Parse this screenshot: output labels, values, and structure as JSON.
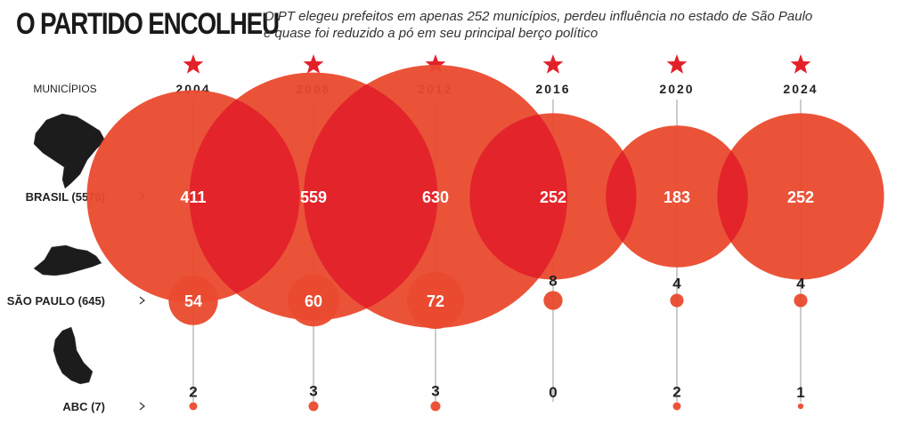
{
  "header": {
    "title": "O PARTIDO ENCOLHEU",
    "subtitle_line1": "O PT elegeu prefeitos em apenas 252 municípios, perdeu influência no estado de São Paulo",
    "subtitle_line2": "e quase foi reduzido a pó em seu principal berço político"
  },
  "chart_data": {
    "type": "bubble",
    "row_header": "MUNICÍPIOS",
    "years": [
      "2004",
      "2008",
      "2012",
      "2016",
      "2020",
      "2024"
    ],
    "series": [
      {
        "name": "BRASIL (5570)",
        "values": [
          411,
          559,
          630,
          252,
          183,
          252
        ],
        "labels_inside": true
      },
      {
        "name": "SÃO PAULO (645)",
        "values": [
          54,
          60,
          72,
          8,
          4,
          4
        ],
        "labels_inside_min": 50
      },
      {
        "name": "ABC (7)",
        "values": [
          2,
          3,
          3,
          0,
          2,
          1
        ],
        "labels_inside_min": 1000
      }
    ],
    "colors": {
      "bubble": "#ea4a2e",
      "overlap": "#e3242b",
      "star": "#e3212b",
      "text": "#222222",
      "stem": "#9a9a9a",
      "map": "#1c1c1c"
    }
  }
}
